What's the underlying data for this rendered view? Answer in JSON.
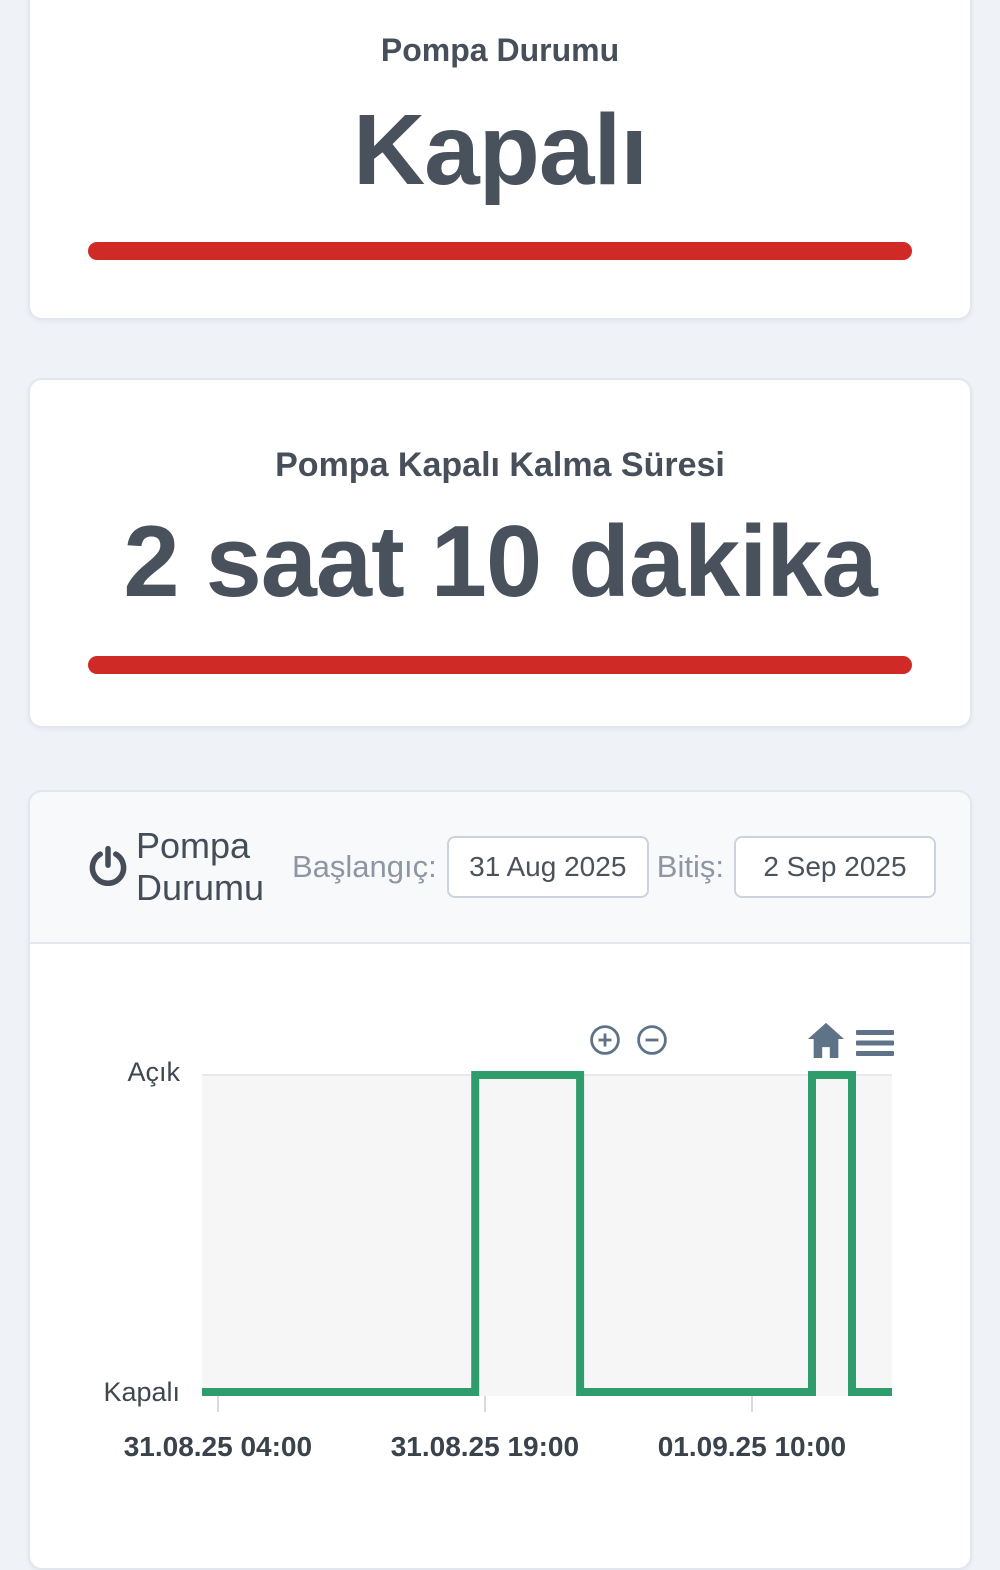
{
  "theme": {
    "page_bg": "#eff2f7",
    "card_bg": "#ffffff",
    "card_border": "#e2e6ef",
    "accent_red": "#d02a26",
    "accent_green": "#2e9d6b",
    "text_dark": "#47505a",
    "text_muted": "#8e96a4",
    "icon_slate": "#5e7387"
  },
  "status_card": {
    "title": "Pompa Durumu",
    "value": "Kapalı"
  },
  "duration_card": {
    "title": "Pompa Kapalı Kalma Süresi",
    "value": "2 saat 10 dakika"
  },
  "chart_card": {
    "title": "Pompa Durumu",
    "start_label": "Başlangıç:",
    "start_value": "31 Aug 2025",
    "end_label": "Bitiş:",
    "end_value": "2 Sep 2025",
    "toolbar_icons": [
      "zoom-in-icon",
      "zoom-out-icon",
      "home-icon",
      "menu-icon"
    ]
  },
  "chart_data": {
    "type": "line",
    "line_style": "step",
    "title": "Pompa Durumu",
    "series_name": "Pompa Durumu",
    "color": "#2e9d6b",
    "plot_bg": "#f6f6f7",
    "grid": "top-gridline-only",
    "legend": "none",
    "y_categories": [
      "Kapalı",
      "Açık"
    ],
    "x_ticks": {
      "labels": [
        "31.08.25 04:00",
        "31.08.25 19:00",
        "01.09.25 10:00"
      ],
      "fracs": [
        0.023,
        0.41,
        0.797
      ]
    },
    "x_range_approx": [
      "31.08.25 03:05",
      "01.09.25 17:50"
    ],
    "points": [
      {
        "x": 0.0,
        "y": 0
      },
      {
        "x": 0.396,
        "y": 0
      },
      {
        "x": 0.396,
        "y": 1
      },
      {
        "x": 0.548,
        "y": 1
      },
      {
        "x": 0.548,
        "y": 0
      },
      {
        "x": 0.884,
        "y": 0
      },
      {
        "x": 0.884,
        "y": 1
      },
      {
        "x": 0.942,
        "y": 1
      },
      {
        "x": 0.942,
        "y": 0
      },
      {
        "x": 1.0,
        "y": 0
      }
    ],
    "events": [
      {
        "time": "31.08.25 ~18:30",
        "state": "Açık"
      },
      {
        "time": "01.09.25 ~00:20",
        "state": "Kapalı"
      },
      {
        "time": "01.09.25 ~13:20",
        "state": "Açık"
      },
      {
        "time": "01.09.25 ~15:35",
        "state": "Kapalı"
      }
    ]
  }
}
